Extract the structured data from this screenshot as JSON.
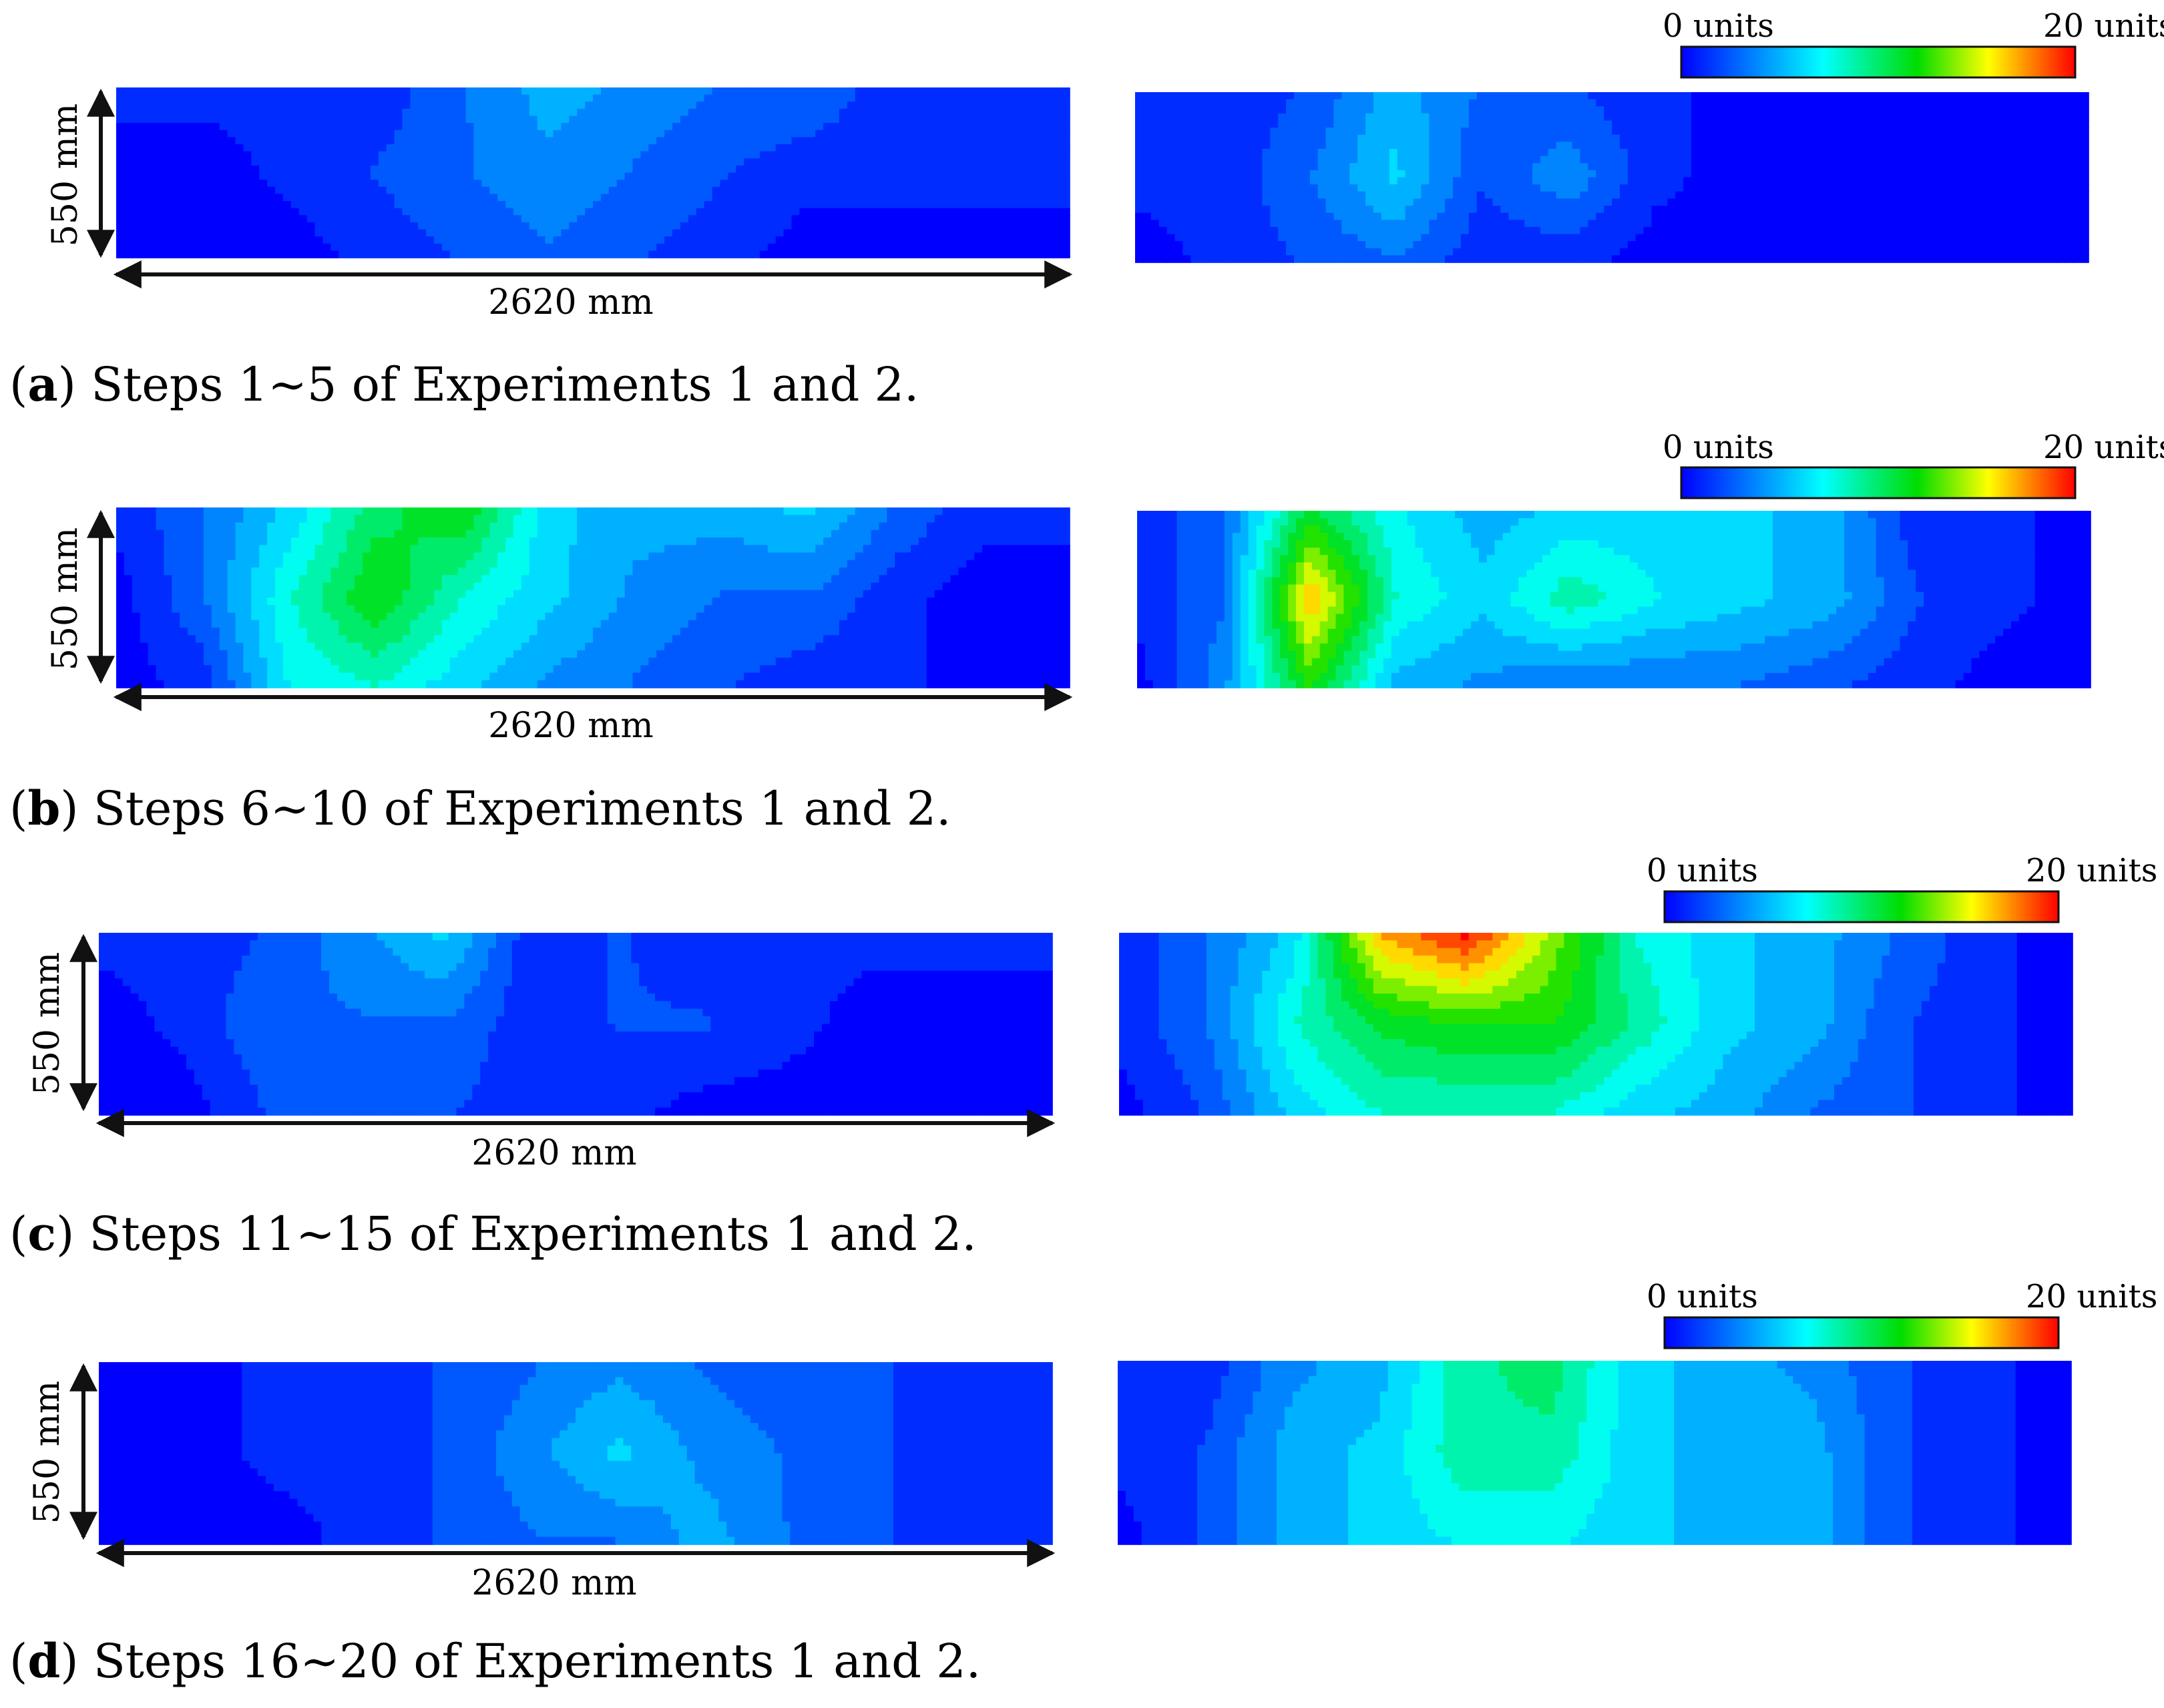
{
  "chart_data": {
    "type": "heatmap",
    "figure": "contour maps",
    "colorbar": {
      "min_label": "0 units",
      "max_label": "20 units",
      "range": [
        0,
        20
      ],
      "colormap": "jet"
    },
    "dimensions": {
      "height_label": "550 mm",
      "width_label": "2620 mm"
    },
    "grid": {
      "cols": 12,
      "rows": 3
    },
    "panels": [
      {
        "letter": "a",
        "caption_rest": ") Steps 1~5 of Experiments 1 and 2.",
        "exp1": [
          [
            1,
            1,
            1,
            1,
            3,
            5,
            4,
            3,
            3,
            1,
            1,
            1
          ],
          [
            0,
            0,
            1,
            2,
            3,
            4,
            3,
            2,
            1,
            1,
            1,
            1
          ],
          [
            0,
            0,
            0,
            1,
            2,
            3,
            2,
            1,
            0,
            0,
            0,
            0
          ]
        ],
        "exp2": [
          [
            1,
            1,
            2,
            5,
            3,
            2,
            1,
            0,
            0,
            0,
            0,
            0
          ],
          [
            1,
            1,
            3,
            6,
            2,
            4,
            1,
            0,
            0,
            0,
            0,
            0
          ],
          [
            0,
            1,
            2,
            3,
            1,
            1,
            0,
            0,
            0,
            0,
            0,
            0
          ]
        ]
      },
      {
        "letter": "b",
        "caption_rest": ") Steps 6~10 of Experiments 1 and 2.",
        "exp1": [
          [
            1,
            3,
            6,
            10,
            12,
            6,
            5,
            5,
            6,
            3,
            1,
            1
          ],
          [
            0,
            3,
            8,
            12,
            8,
            6,
            4,
            3,
            3,
            1,
            0,
            0
          ],
          [
            0,
            1,
            7,
            8,
            6,
            4,
            3,
            2,
            1,
            1,
            0,
            0
          ]
        ],
        "exp2": [
          [
            1,
            3,
            11,
            7,
            5,
            6,
            6,
            6,
            5,
            1,
            1,
            0
          ],
          [
            1,
            3,
            17,
            8,
            6,
            9,
            7,
            6,
            5,
            2,
            1,
            0
          ],
          [
            0,
            4,
            12,
            5,
            4,
            3,
            3,
            3,
            2,
            1,
            0,
            0
          ]
        ]
      },
      {
        "letter": "c",
        "caption_rest": ") Steps 11~15 of Experiments 1 and 2.",
        "exp1": [
          [
            1,
            1,
            2,
            4,
            6,
            1,
            2,
            1,
            1,
            1,
            1,
            1
          ],
          [
            0,
            1,
            3,
            3,
            3,
            1,
            2,
            2,
            1,
            0,
            0,
            0
          ],
          [
            0,
            0,
            2,
            3,
            2,
            1,
            1,
            0,
            0,
            0,
            0,
            0
          ]
        ],
        "exp2": [
          [
            1,
            3,
            6,
            17,
            20,
            14,
            8,
            6,
            5,
            3,
            1,
            0
          ],
          [
            1,
            3,
            8,
            11,
            12,
            12,
            9,
            6,
            5,
            2,
            1,
            0
          ],
          [
            0,
            2,
            6,
            8,
            8,
            8,
            6,
            5,
            3,
            2,
            1,
            0
          ]
        ]
      },
      {
        "letter": "d",
        "caption_rest": ") Steps 16~20 of Experiments 1 and 2.",
        "exp1": [
          [
            0,
            0,
            1,
            1,
            2,
            3,
            4,
            3,
            2,
            2,
            1,
            1
          ],
          [
            0,
            0,
            1,
            1,
            2,
            4,
            6,
            4,
            3,
            2,
            1,
            1
          ],
          [
            0,
            0,
            0,
            1,
            2,
            3,
            3,
            5,
            3,
            2,
            1,
            1
          ]
        ],
        "exp2": [
          [
            1,
            1,
            4,
            5,
            9,
            10,
            6,
            5,
            4,
            2,
            1,
            0
          ],
          [
            1,
            2,
            5,
            6,
            9,
            9,
            6,
            5,
            5,
            2,
            1,
            0
          ],
          [
            0,
            2,
            5,
            6,
            7,
            7,
            6,
            5,
            5,
            2,
            1,
            0
          ]
        ]
      }
    ]
  }
}
